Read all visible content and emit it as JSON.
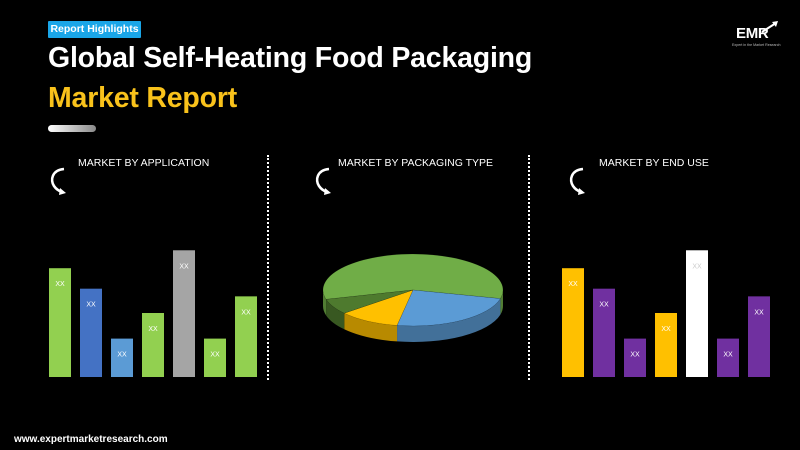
{
  "header": {
    "badge": "Report Highlights",
    "title_line1": "Global Self-Heating Food Packaging",
    "title_line2": "Market Report"
  },
  "logo": {
    "text": "EMR",
    "tagline": "Expert in the Market Research"
  },
  "footer": {
    "url": "www.expertmarketresearch.com"
  },
  "icons": [
    "rotate-arrow-icon",
    "rotate-arrow-icon",
    "rotate-arrow-icon"
  ],
  "colors": {
    "badge": "#1aa6e8",
    "accent_yellow": "#f9c21b",
    "green": "#92d050",
    "blue": "#4472c4",
    "light_blue": "#5b9bd5",
    "gray": "#a5a5a5",
    "purple": "#7030a0",
    "white": "#ffffff"
  },
  "chart_data": [
    {
      "type": "bar",
      "title": "MARKET BY APPLICATION",
      "categories": [
        "",
        "",
        "",
        "",
        "",
        "",
        ""
      ],
      "values": [
        85,
        69,
        30,
        50,
        99,
        30,
        63
      ],
      "data_labels": [
        "XX",
        "XX",
        "XX",
        "XX",
        "XX",
        "XX",
        "XX"
      ],
      "colors": [
        "#92d050",
        "#4472c4",
        "#5b9bd5",
        "#92d050",
        "#a5a5a5",
        "#92d050",
        "#92d050"
      ],
      "ylim": [
        0,
        100
      ],
      "grid": false
    },
    {
      "type": "pie",
      "title": "MARKET BY PACKAGING TYPE",
      "values": [
        58,
        24,
        11,
        7
      ],
      "colors": [
        "#70ad47",
        "#5b9bd5",
        "#ffc000",
        "#4e7a2e"
      ],
      "style": "3d"
    },
    {
      "type": "bar",
      "title": "MARKET BY END USE",
      "categories": [
        "",
        "",
        "",
        "",
        "",
        "",
        ""
      ],
      "values": [
        85,
        69,
        30,
        50,
        99,
        30,
        63
      ],
      "data_labels": [
        "XX",
        "XX",
        "XX",
        "XX",
        "XX",
        "XX",
        "XX"
      ],
      "colors": [
        "#ffc000",
        "#7030a0",
        "#7030a0",
        "#ffc000",
        "#ffffff",
        "#7030a0",
        "#7030a0"
      ],
      "ylim": [
        0,
        100
      ],
      "grid": false
    }
  ]
}
